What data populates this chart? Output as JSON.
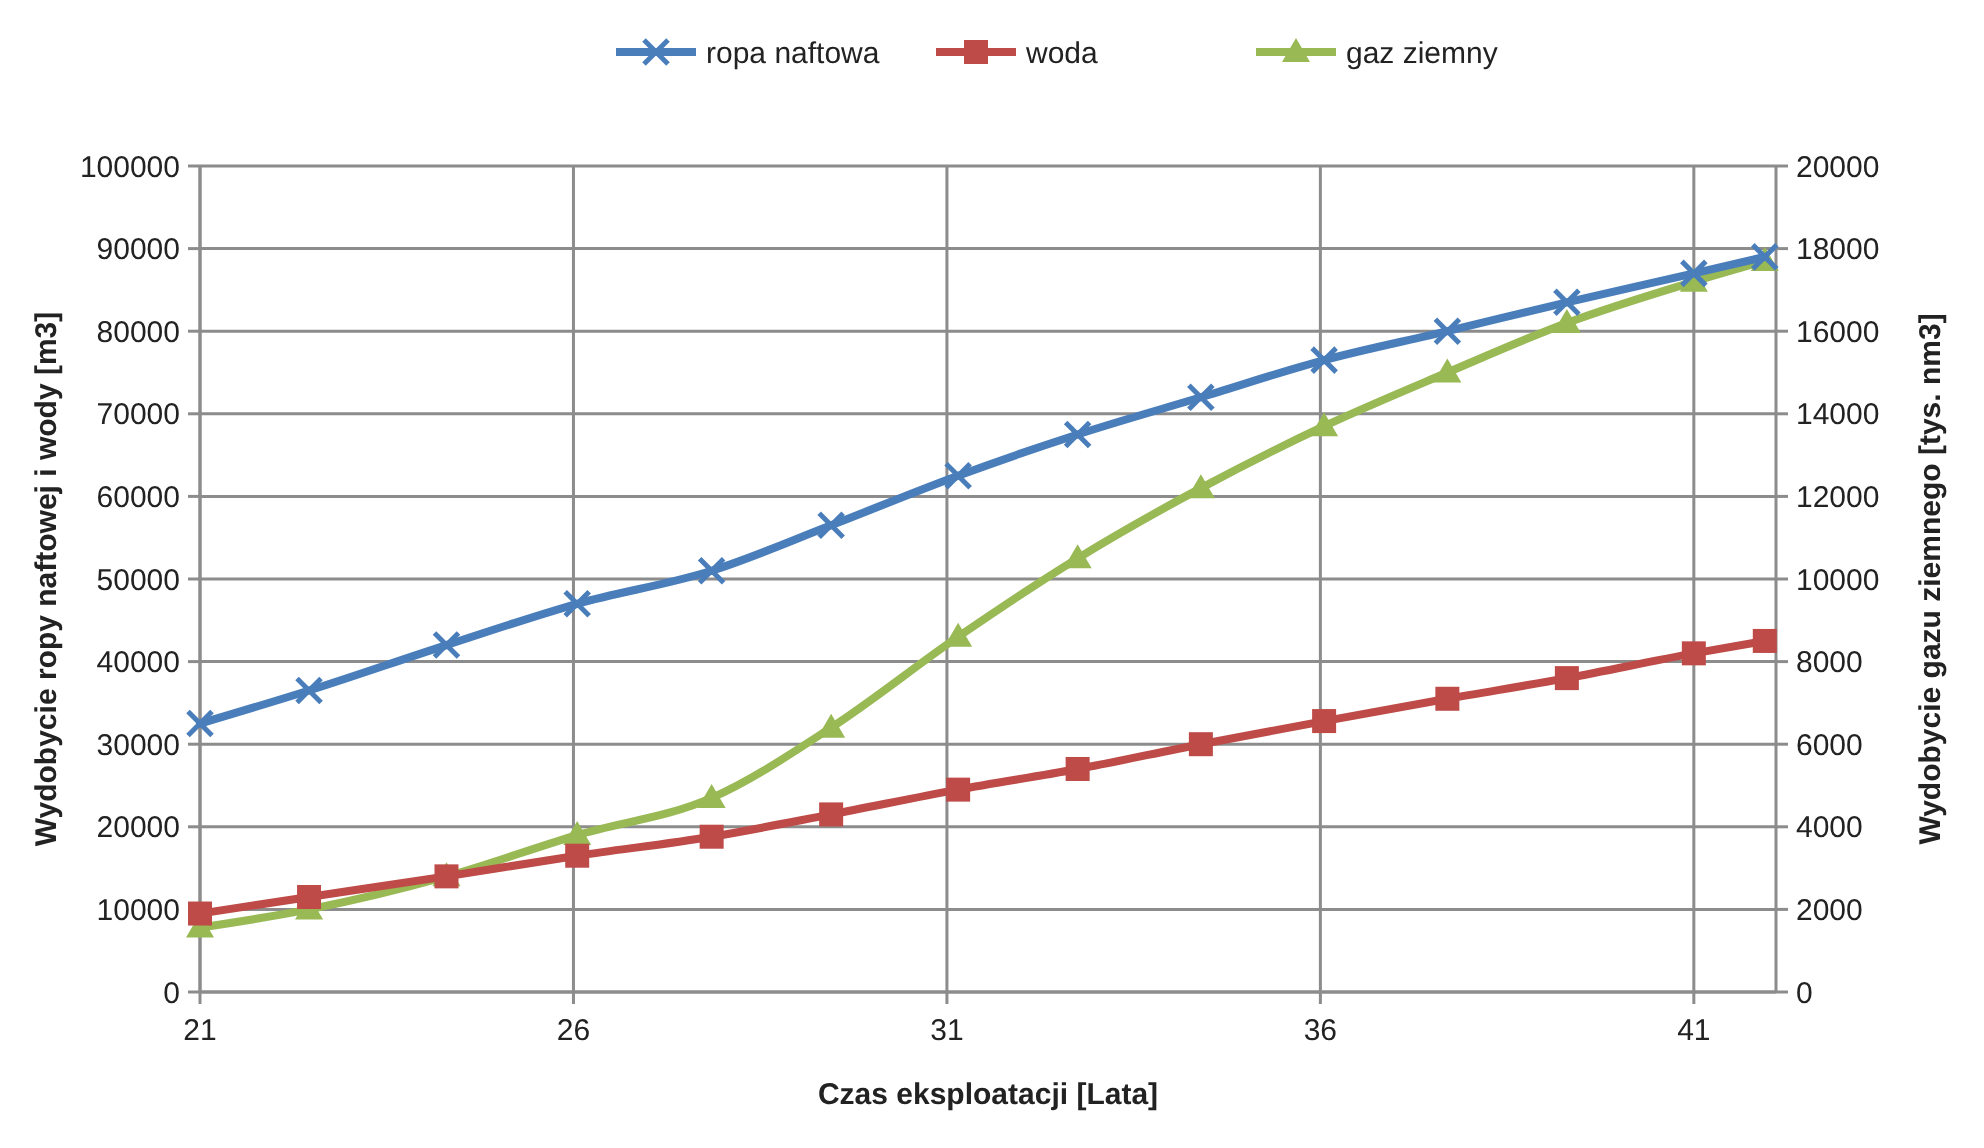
{
  "chart_data": {
    "type": "line",
    "xlabel": "Czas eksploatacji  [Lata]",
    "ylabel": "Wydobycie  ropy naftowej i wody [m3]",
    "y2label": "Wydobycie  gazu  ziemnego  [tys. nm3]",
    "x": [
      21,
      22.46,
      24.3,
      26.05,
      27.85,
      29.45,
      31.15,
      32.75,
      34.4,
      36.05,
      37.7,
      39.3,
      41.0,
      41.95
    ],
    "xlim": [
      21,
      42.1
    ],
    "xticks": [
      21,
      26,
      31,
      36,
      41
    ],
    "ylim": [
      0,
      100000
    ],
    "yticks": [
      0,
      10000,
      20000,
      30000,
      40000,
      50000,
      60000,
      70000,
      80000,
      90000,
      100000
    ],
    "y2lim": [
      0,
      20000
    ],
    "y2ticks": [
      0,
      2000,
      4000,
      6000,
      8000,
      10000,
      12000,
      14000,
      16000,
      18000,
      20000
    ],
    "series": [
      {
        "name": "ropa naftowa",
        "color": "#4a7ebb",
        "marker": "cross",
        "values": [
          32500,
          36500,
          42000,
          47000,
          51000,
          56500,
          62500,
          67500,
          72000,
          76500,
          80000,
          83500,
          87000,
          89000
        ]
      },
      {
        "name": "woda",
        "color": "#be4b48",
        "marker": "square",
        "values": [
          9500,
          11500,
          14000,
          16500,
          18800,
          21500,
          24500,
          27000,
          30000,
          32800,
          35500,
          38000,
          41000,
          42500
        ]
      },
      {
        "name": "gaz ziemny",
        "color": "#98b954",
        "marker": "triangle",
        "axis": "y2",
        "values": [
          1560,
          2000,
          2800,
          3800,
          4700,
          6400,
          8600,
          10500,
          12200,
          13700,
          15000,
          16200,
          17200,
          17700
        ]
      }
    ],
    "grid": true,
    "legend": "top",
    "line_style": "solid"
  }
}
